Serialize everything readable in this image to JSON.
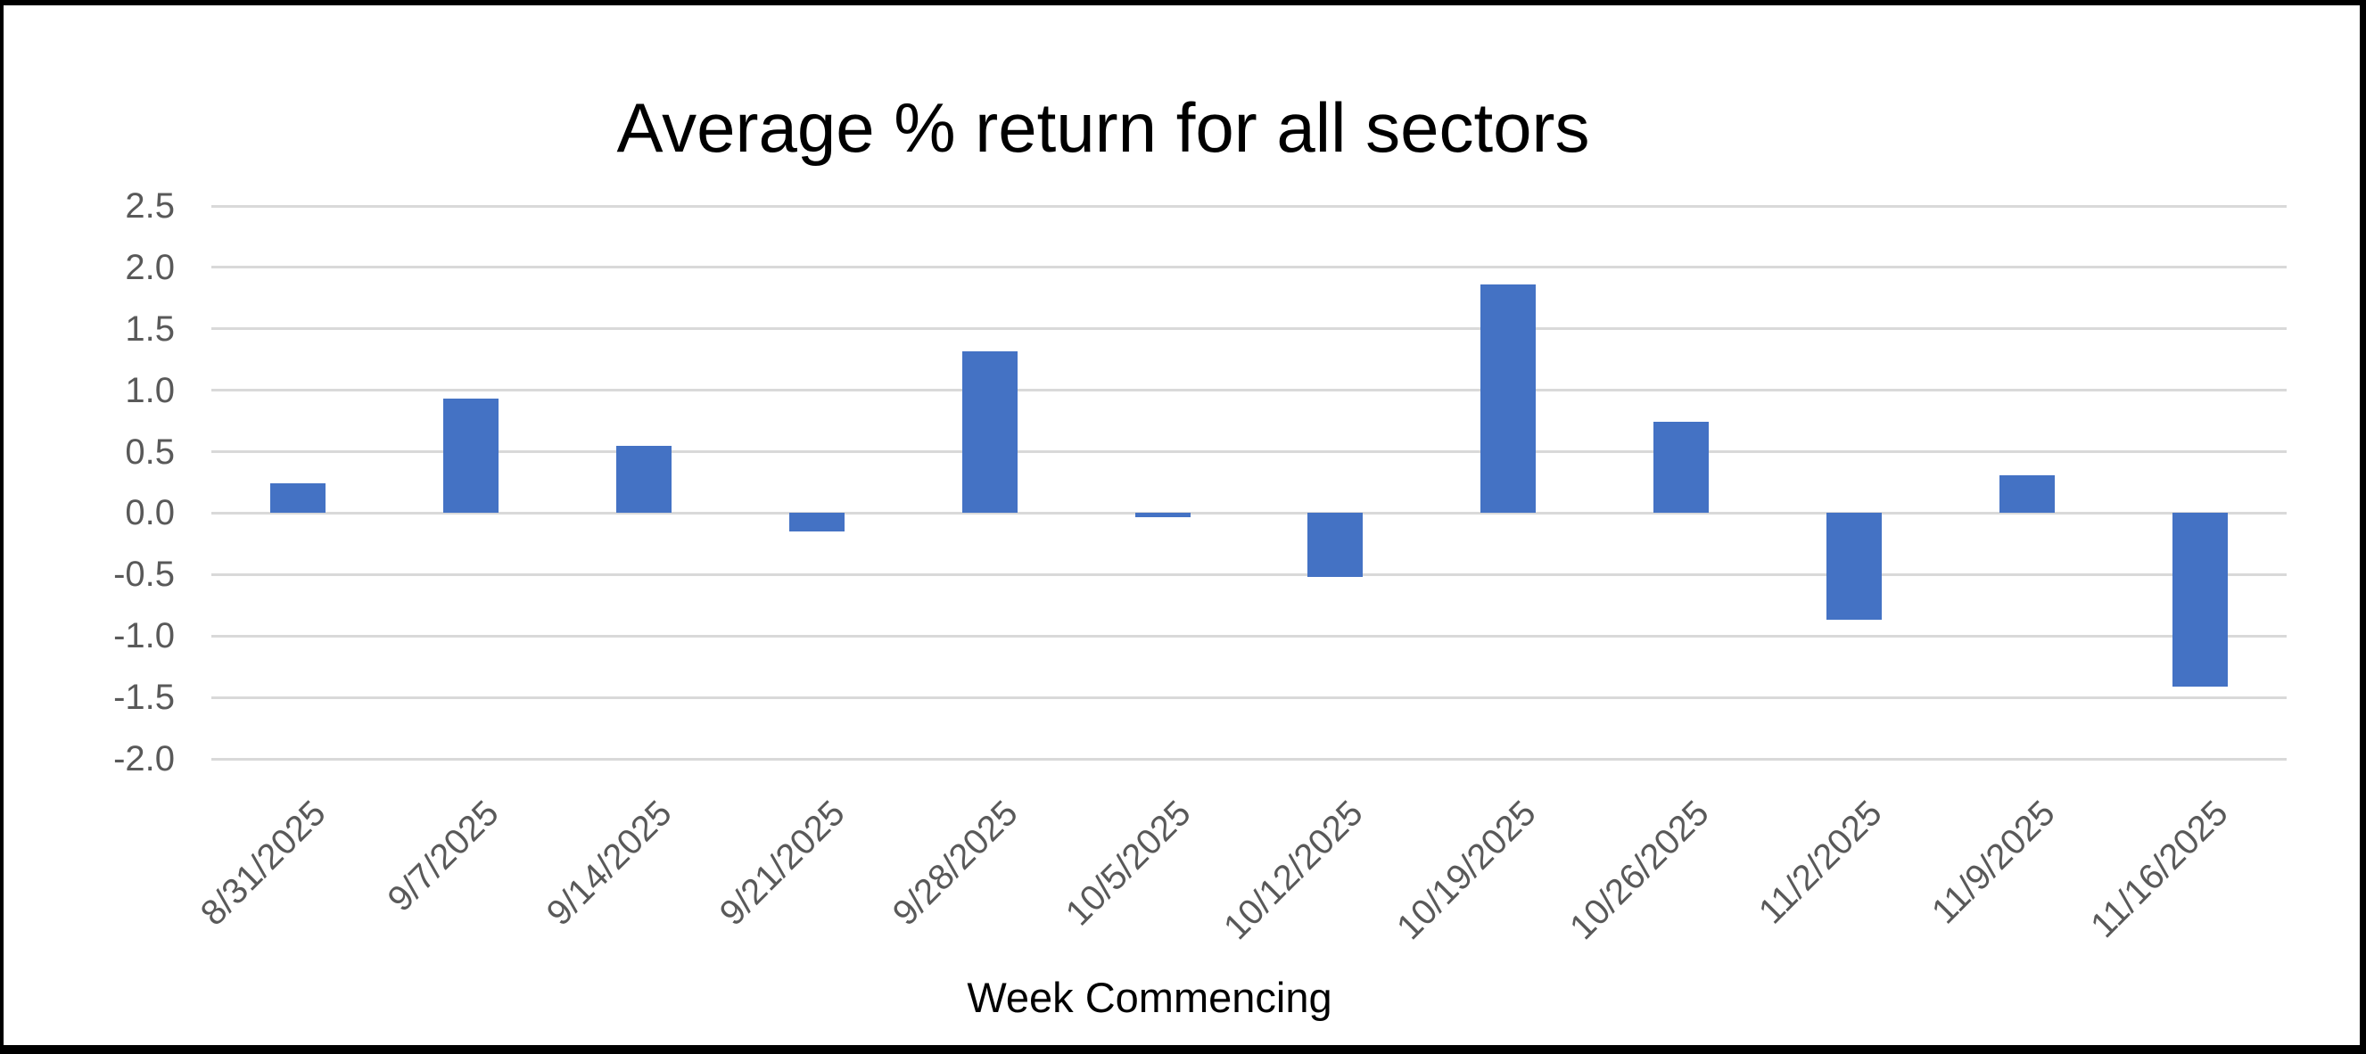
{
  "chart_data": {
    "type": "bar",
    "title": "Average % return for all sectors",
    "xlabel": "Week Commencing",
    "ylabel": "",
    "categories": [
      "8/31/2025",
      "9/7/2025",
      "9/14/2025",
      "9/21/2025",
      "9/28/2025",
      "10/5/2025",
      "10/12/2025",
      "10/19/2025",
      "10/26/2025",
      "11/2/2025",
      "11/9/2025",
      "11/16/2025"
    ],
    "values": [
      0.24,
      0.93,
      0.55,
      -0.15,
      1.32,
      -0.03,
      -0.52,
      1.86,
      0.74,
      -0.87,
      0.31,
      -1.41
    ],
    "ylim": [
      -2.0,
      2.5
    ],
    "ytick_step": 0.5,
    "y_tick_labels": [
      "2.5",
      "2.0",
      "1.5",
      "1.0",
      "0.5",
      "0.0",
      "-0.5",
      "-1.0",
      "-1.5",
      "-2.0"
    ],
    "grid": true,
    "legend": false,
    "x_tick_rotation_deg": -45,
    "colors": {
      "bar": "#4472C4",
      "gridline": "#D9D9D9",
      "tick_label": "#595959",
      "title": "#000000",
      "axis_title": "#000000",
      "frame_border": "#000000",
      "background": "#FFFFFF"
    }
  }
}
